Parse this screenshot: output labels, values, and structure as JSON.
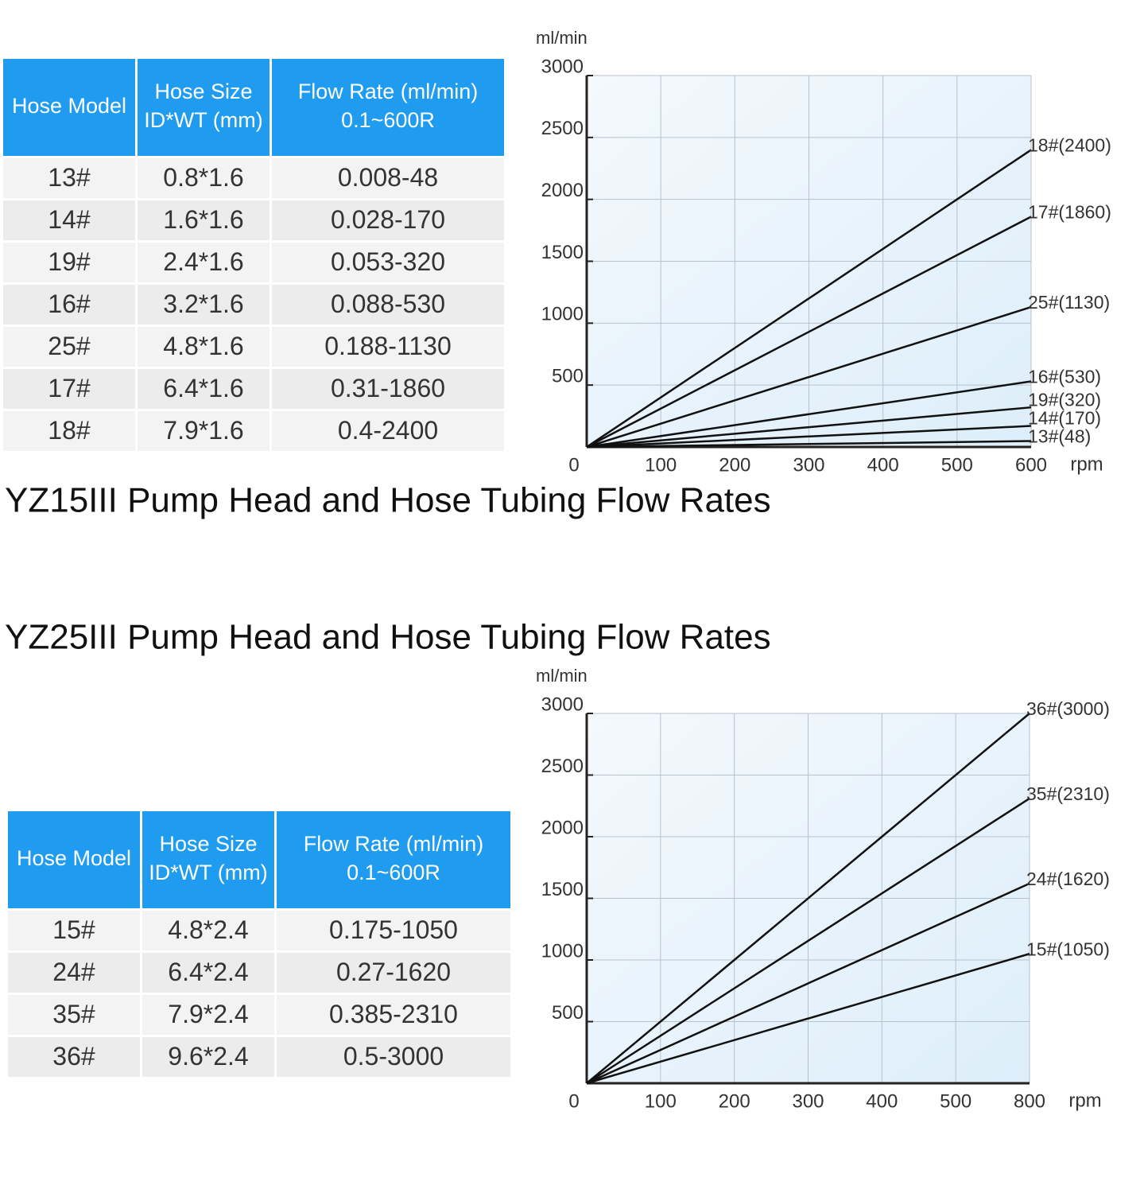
{
  "sections": [
    {
      "title": "YZ15III Pump Head and Hose Tubing Flow Rates",
      "table": {
        "header": [
          [
            "Hose Model"
          ],
          [
            "Hose Size",
            "ID*WT (mm)"
          ],
          [
            "Flow Rate (ml/min)",
            "0.1~600R"
          ]
        ],
        "rows": [
          [
            "13#",
            "0.8*1.6",
            "0.008-48"
          ],
          [
            "14#",
            "1.6*1.6",
            "0.028-170"
          ],
          [
            "19#",
            "2.4*1.6",
            "0.053-320"
          ],
          [
            "16#",
            "3.2*1.6",
            "0.088-530"
          ],
          [
            "25#",
            "4.8*1.6",
            "0.188-1130"
          ],
          [
            "17#",
            "6.4*1.6",
            "0.31-1860"
          ],
          [
            "18#",
            "7.9*1.6",
            "0.4-2400"
          ]
        ]
      }
    },
    {
      "title": "YZ25III Pump Head and Hose Tubing Flow Rates",
      "table": {
        "header": [
          [
            "Hose Model"
          ],
          [
            "Hose Size",
            "ID*WT (mm)"
          ],
          [
            "Flow Rate (ml/min)",
            "0.1~600R"
          ]
        ],
        "rows": [
          [
            "15#",
            "4.8*2.4",
            "0.175-1050"
          ],
          [
            "24#",
            "6.4*2.4",
            "0.27-1620"
          ],
          [
            "35#",
            "7.9*2.4",
            "0.385-2310"
          ],
          [
            "36#",
            "9.6*2.4",
            "0.5-3000"
          ]
        ]
      }
    }
  ],
  "chart_data": [
    {
      "type": "line",
      "y_label": "ml/min",
      "x_label": "rpm",
      "xlim": [
        0,
        600
      ],
      "xticks": [
        0,
        100,
        200,
        300,
        400,
        500,
        600
      ],
      "ylim": [
        0,
        3000
      ],
      "yticks": [
        500,
        1000,
        1500,
        2000,
        2500,
        3000
      ],
      "grid": true,
      "series": [
        {
          "name": "18#(2400)",
          "color": "#111111",
          "x": [
            0,
            600
          ],
          "values": [
            0,
            2400
          ]
        },
        {
          "name": "17#(1860)",
          "color": "#111111",
          "x": [
            0,
            600
          ],
          "values": [
            0,
            1860
          ]
        },
        {
          "name": "25#(1130)",
          "color": "#111111",
          "x": [
            0,
            600
          ],
          "values": [
            0,
            1130
          ]
        },
        {
          "name": "16#(530)",
          "color": "#111111",
          "x": [
            0,
            600
          ],
          "values": [
            0,
            530
          ]
        },
        {
          "name": "19#(320)",
          "color": "#111111",
          "x": [
            0,
            600
          ],
          "values": [
            0,
            320
          ]
        },
        {
          "name": "14#(170)",
          "color": "#111111",
          "x": [
            0,
            600
          ],
          "values": [
            0,
            170
          ]
        },
        {
          "name": "13#(48)",
          "color": "#111111",
          "x": [
            0,
            600
          ],
          "values": [
            0,
            48
          ]
        }
      ]
    },
    {
      "type": "line",
      "y_label": "ml/min",
      "x_label": "rpm",
      "xlim": [
        0,
        800
      ],
      "xticks": [
        0,
        100,
        200,
        300,
        400,
        500,
        800
      ],
      "ylim": [
        0,
        3000
      ],
      "yticks": [
        500,
        1000,
        1500,
        2000,
        2500,
        3000
      ],
      "grid": true,
      "series": [
        {
          "name": "36#(3000)",
          "color": "#111111",
          "x": [
            0,
            800
          ],
          "values": [
            0,
            3000
          ]
        },
        {
          "name": "35#(2310)",
          "color": "#111111",
          "x": [
            0,
            800
          ],
          "values": [
            0,
            2310
          ]
        },
        {
          "name": "24#(1620)",
          "color": "#111111",
          "x": [
            0,
            800
          ],
          "values": [
            0,
            1620
          ]
        },
        {
          "name": "15#(1050)",
          "color": "#111111",
          "x": [
            0,
            800
          ],
          "values": [
            0,
            1050
          ]
        }
      ]
    }
  ]
}
